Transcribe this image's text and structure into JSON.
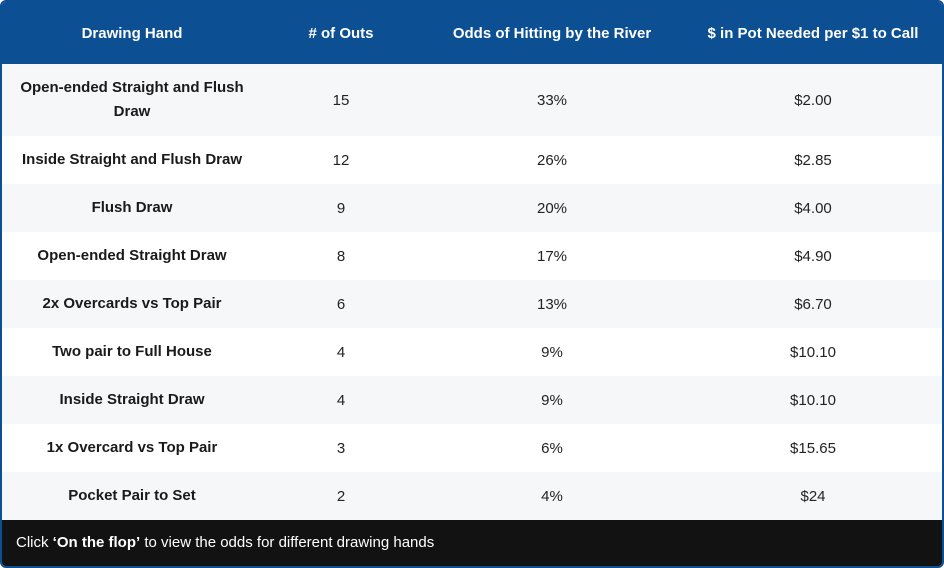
{
  "headers": [
    "Drawing Hand",
    "# of Outs",
    "Odds of Hitting by the River",
    "$ in Pot Needed per $1 to Call"
  ],
  "rows": [
    {
      "hand": "Open-ended Straight and Flush Draw",
      "outs": "15",
      "odds": "33%",
      "pot": "$2.00"
    },
    {
      "hand": "Inside Straight and Flush Draw",
      "outs": "12",
      "odds": "26%",
      "pot": "$2.85"
    },
    {
      "hand": "Flush Draw",
      "outs": "9",
      "odds": "20%",
      "pot": "$4.00"
    },
    {
      "hand": "Open-ended Straight Draw",
      "outs": "8",
      "odds": "17%",
      "pot": "$4.90"
    },
    {
      "hand": "2x Overcards vs Top Pair",
      "outs": "6",
      "odds": "13%",
      "pot": "$6.70"
    },
    {
      "hand": "Two pair to Full House",
      "outs": "4",
      "odds": "9%",
      "pot": "$10.10"
    },
    {
      "hand": "Inside Straight Draw",
      "outs": "4",
      "odds": "9%",
      "pot": "$10.10"
    },
    {
      "hand": "1x Overcard vs Top Pair",
      "outs": "3",
      "odds": "6%",
      "pot": "$15.65"
    },
    {
      "hand": "Pocket Pair to Set",
      "outs": "2",
      "odds": "4%",
      "pot": "$24"
    }
  ],
  "footer": {
    "prefix": "Click ",
    "link": "‘On the flop’",
    "suffix": " to view the odds for different drawing hands"
  },
  "colors": {
    "header": "#0d4f93",
    "footer": "#121212"
  }
}
